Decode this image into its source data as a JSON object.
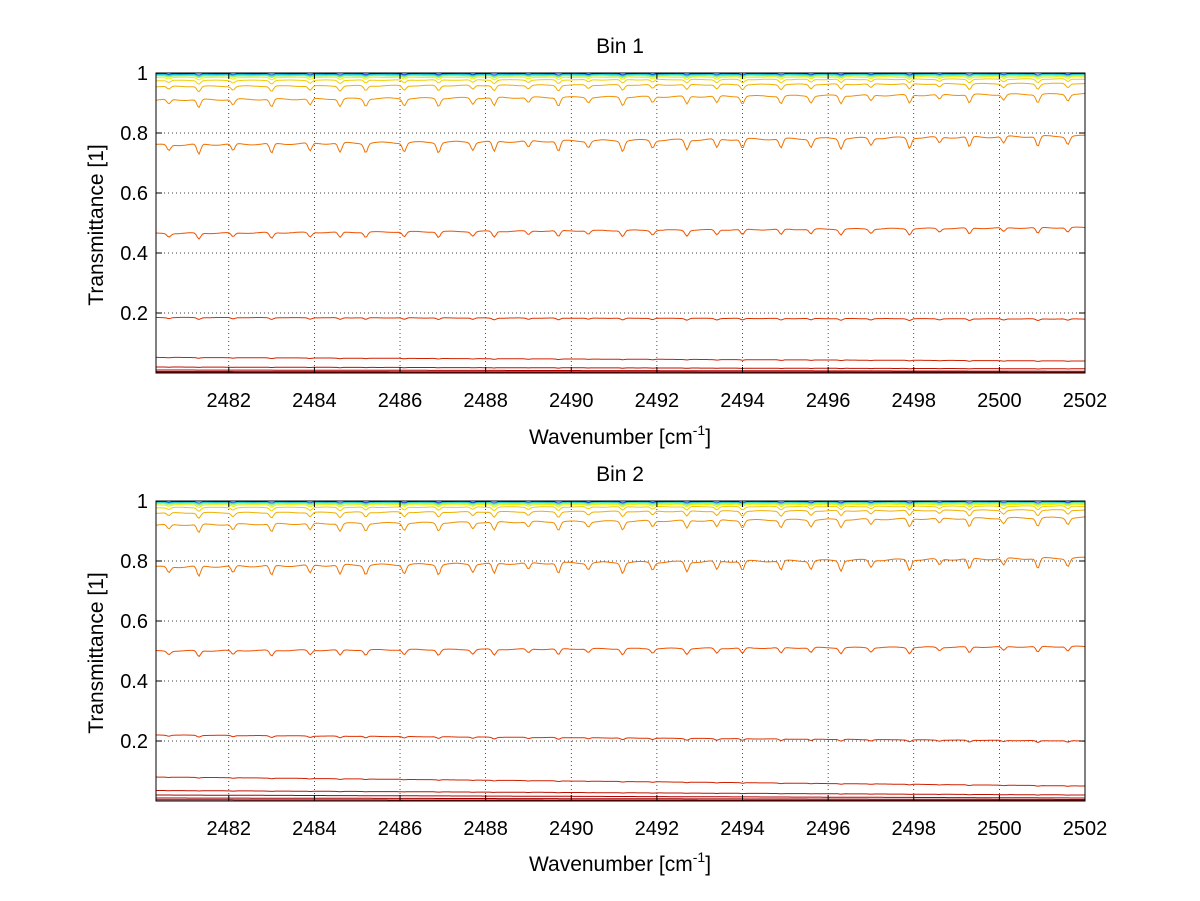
{
  "chart_data": [
    {
      "type": "line",
      "title": "Bin 1",
      "xlabel": "Wavenumber [cm",
      "xlabel_sup": "-1",
      "xlabel_end": "]",
      "ylabel": "Transmittance [1]",
      "xlim": [
        2480.3,
        2502
      ],
      "ylim": [
        0,
        1
      ],
      "xticks": [
        2482,
        2484,
        2486,
        2488,
        2490,
        2492,
        2494,
        2496,
        2498,
        2500,
        2502
      ],
      "xtick_labels": [
        "2482",
        "2484",
        "2486",
        "2488",
        "2490",
        "2492",
        "2494",
        "2496",
        "2498",
        "2500",
        "2502"
      ],
      "yticks": [
        0.2,
        0.4,
        0.6,
        0.8,
        1
      ],
      "ytick_labels": [
        "0.2",
        "0.4",
        "0.6",
        "0.8",
        "1"
      ],
      "grid": true,
      "grid_style": "dotted",
      "series": [
        {
          "color": "#0000a0",
          "start": 0.997,
          "end": 0.997,
          "depth": 0.004
        },
        {
          "color": "#0060e0",
          "start": 0.996,
          "end": 0.996,
          "depth": 0.004
        },
        {
          "color": "#00b0f0",
          "start": 0.995,
          "end": 0.995,
          "depth": 0.004
        },
        {
          "color": "#40e0c0",
          "start": 0.993,
          "end": 0.994,
          "depth": 0.005
        },
        {
          "color": "#a0f060",
          "start": 0.99,
          "end": 0.991,
          "depth": 0.006
        },
        {
          "color": "#f0f000",
          "start": 0.985,
          "end": 0.987,
          "depth": 0.008
        },
        {
          "color": "#f0d000",
          "start": 0.975,
          "end": 0.98,
          "depth": 0.012
        },
        {
          "color": "#f0b000",
          "start": 0.955,
          "end": 0.965,
          "depth": 0.018
        },
        {
          "color": "#f09000",
          "start": 0.91,
          "end": 0.93,
          "depth": 0.028
        },
        {
          "color": "#f07000",
          "start": 0.76,
          "end": 0.79,
          "depth": 0.035
        },
        {
          "color": "#f05000",
          "start": 0.465,
          "end": 0.485,
          "depth": 0.02
        },
        {
          "color": "#e03000",
          "start": 0.185,
          "end": 0.18,
          "depth": 0.006
        },
        {
          "color": "#d02000",
          "start": 0.052,
          "end": 0.04,
          "depth": 0.002
        },
        {
          "color": "#c01000",
          "start": 0.02,
          "end": 0.014,
          "depth": 0.001
        },
        {
          "color": "#b00000",
          "start": 0.01,
          "end": 0.006,
          "depth": 0.0
        },
        {
          "color": "#a00000",
          "start": 0.005,
          "end": 0.003,
          "depth": 0.0
        },
        {
          "color": "#900000",
          "start": 0.002,
          "end": 0.001,
          "depth": 0.0
        }
      ]
    },
    {
      "type": "line",
      "title": "Bin 2",
      "xlabel": "Wavenumber [cm",
      "xlabel_sup": "-1",
      "xlabel_end": "]",
      "ylabel": "Transmittance [1]",
      "xlim": [
        2480.3,
        2502
      ],
      "ylim": [
        0,
        1
      ],
      "xticks": [
        2482,
        2484,
        2486,
        2488,
        2490,
        2492,
        2494,
        2496,
        2498,
        2500,
        2502
      ],
      "xtick_labels": [
        "2482",
        "2484",
        "2486",
        "2488",
        "2490",
        "2492",
        "2494",
        "2496",
        "2498",
        "2500",
        "2502"
      ],
      "yticks": [
        0.2,
        0.4,
        0.6,
        0.8,
        1
      ],
      "ytick_labels": [
        "0.2",
        "0.4",
        "0.6",
        "0.8",
        "1"
      ],
      "grid": true,
      "grid_style": "dotted",
      "series": [
        {
          "color": "#0000a0",
          "start": 0.997,
          "end": 0.997,
          "depth": 0.004
        },
        {
          "color": "#0060e0",
          "start": 0.996,
          "end": 0.996,
          "depth": 0.004
        },
        {
          "color": "#00b0f0",
          "start": 0.995,
          "end": 0.995,
          "depth": 0.004
        },
        {
          "color": "#40e0c0",
          "start": 0.994,
          "end": 0.995,
          "depth": 0.005
        },
        {
          "color": "#a0f060",
          "start": 0.991,
          "end": 0.992,
          "depth": 0.006
        },
        {
          "color": "#f0f000",
          "start": 0.987,
          "end": 0.989,
          "depth": 0.008
        },
        {
          "color": "#f0d000",
          "start": 0.978,
          "end": 0.983,
          "depth": 0.012
        },
        {
          "color": "#f0b000",
          "start": 0.96,
          "end": 0.97,
          "depth": 0.018
        },
        {
          "color": "#f09000",
          "start": 0.92,
          "end": 0.945,
          "depth": 0.028
        },
        {
          "color": "#f07000",
          "start": 0.78,
          "end": 0.81,
          "depth": 0.035
        },
        {
          "color": "#f05000",
          "start": 0.5,
          "end": 0.515,
          "depth": 0.02
        },
        {
          "color": "#e03000",
          "start": 0.22,
          "end": 0.2,
          "depth": 0.006
        },
        {
          "color": "#d02000",
          "start": 0.08,
          "end": 0.05,
          "depth": 0.002
        },
        {
          "color": "#c01000",
          "start": 0.035,
          "end": 0.02,
          "depth": 0.001
        },
        {
          "color": "#b00000",
          "start": 0.02,
          "end": 0.01,
          "depth": 0.0
        },
        {
          "color": "#a00000",
          "start": 0.01,
          "end": 0.005,
          "depth": 0.0
        },
        {
          "color": "#900000",
          "start": 0.004,
          "end": 0.002,
          "depth": 0.0
        }
      ]
    }
  ]
}
